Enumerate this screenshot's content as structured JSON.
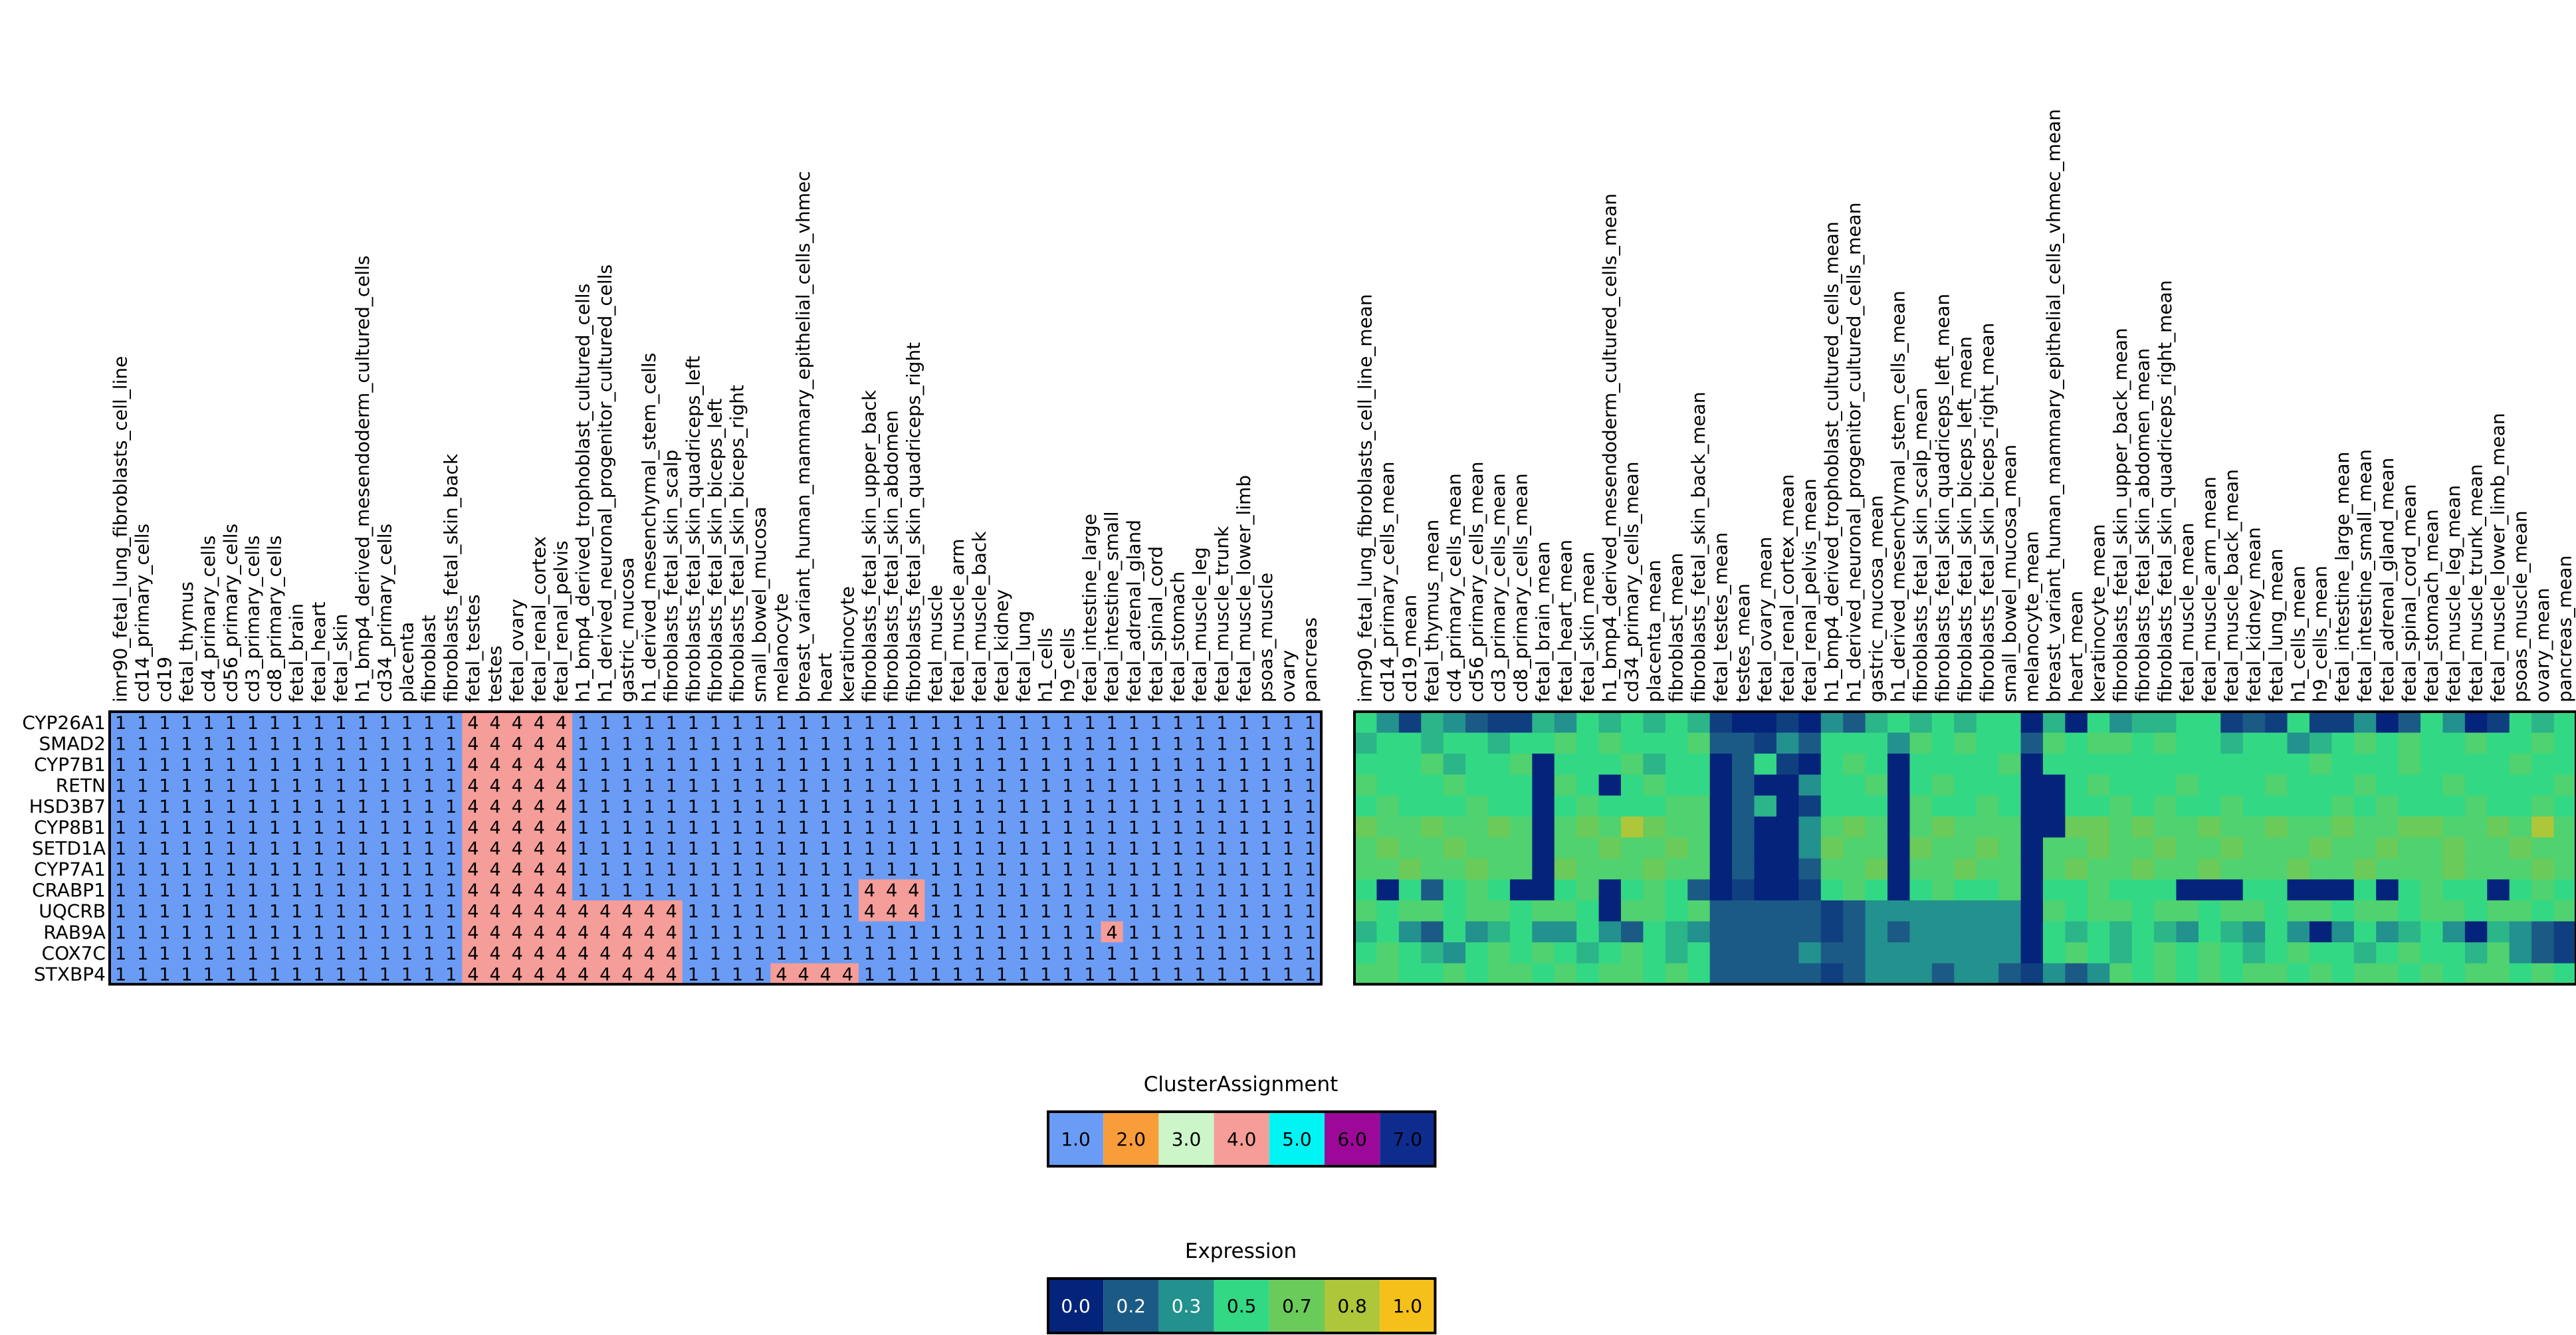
{
  "chart_data": [
    {
      "type": "heatmap",
      "rows": [
        "CYP26A1",
        "SMAD2",
        "CYP7B1",
        "RETN",
        "HSD3B7",
        "CYP8B1",
        "SETD1A",
        "CYP7A1",
        "CRABP1",
        "UQCRB",
        "RAB9A",
        "COX7C",
        "STXBP4"
      ],
      "columns": [
        "imr90_fetal_lung_fibroblasts_cell_line",
        "cd14_primary_cells",
        "cd19",
        "fetal_thymus",
        "cd4_primary_cells",
        "cd56_primary_cells",
        "cd3_primary_cells",
        "cd8_primary_cells",
        "fetal_brain",
        "fetal_heart",
        "fetal_skin",
        "h1_bmp4_derived_mesendoderm_cultured_cells",
        "cd34_primary_cells",
        "placenta",
        "fibroblast",
        "fibroblasts_fetal_skin_back",
        "fetal_testes",
        "testes",
        "fetal_ovary",
        "fetal_renal_cortex",
        "fetal_renal_pelvis",
        "h1_bmp4_derived_trophoblast_cultured_cells",
        "h1_derived_neuronal_progenitor_cultured_cells",
        "gastric_mucosa",
        "h1_derived_mesenchymal_stem_cells",
        "fibroblasts_fetal_skin_scalp",
        "fibroblasts_fetal_skin_quadriceps_left",
        "fibroblasts_fetal_skin_biceps_left",
        "fibroblasts_fetal_skin_biceps_right",
        "small_bowel_mucosa",
        "melanocyte",
        "breast_variant_human_mammary_epithelial_cells_vhmec",
        "heart",
        "keratinocyte",
        "fibroblasts_fetal_skin_upper_back",
        "fibroblasts_fetal_skin_abdomen",
        "fibroblasts_fetal_skin_quadriceps_right",
        "fetal_muscle",
        "fetal_muscle_arm",
        "fetal_muscle_back",
        "fetal_kidney",
        "fetal_lung",
        "h1_cells",
        "h9_cells",
        "fetal_intestine_large",
        "fetal_intestine_small",
        "fetal_adrenal_gland",
        "fetal_spinal_cord",
        "fetal_stomach",
        "fetal_muscle_leg",
        "fetal_muscle_trunk",
        "fetal_muscle_lower_limb",
        "psoas_muscle",
        "ovary",
        "pancreas"
      ],
      "values": [
        "1111111111111111444441111111111111111111111111111111111",
        "1111111111111111444441111111111111111111111111111111111",
        "1111111111111111444441111111111111111111111111111111111",
        "1111111111111111444441111111111111111111111111111111111",
        "1111111111111111444441111111111111111111111111111111111",
        "1111111111111111444441111111111111111111111111111111111",
        "1111111111111111444441111111111111111111111111111111111",
        "1111111111111111444441111111111111111111111111111111111",
        "1111111111111111444441111111111111444111111111111111111",
        "1111111111111111444444444411111111444111111111111111111",
        "1111111111111111444444444411111111111111111114111111111",
        "1111111111111111444444444411111111111111111111111111111",
        "1111111111111111444444444411114444111111111111111111111"
      ],
      "cluster_colors": {
        "1": "#6b9cf5",
        "4": "#f59d99"
      }
    },
    {
      "type": "heatmap",
      "rows": [
        "CYP26A1",
        "SMAD2",
        "CYP7B1",
        "RETN",
        "HSD3B7",
        "CYP8B1",
        "SETD1A",
        "CYP7A1",
        "CRABP1",
        "UQCRB",
        "RAB9A",
        "COX7C",
        "STXBP4"
      ],
      "columns": [
        "imr90_fetal_lung_fibroblasts_cell_line_mean",
        "cd14_primary_cells_mean",
        "cd19_mean",
        "fetal_thymus_mean",
        "cd4_primary_cells_mean",
        "cd56_primary_cells_mean",
        "cd3_primary_cells_mean",
        "cd8_primary_cells_mean",
        "fetal_brain_mean",
        "fetal_heart_mean",
        "fetal_skin_mean",
        "h1_bmp4_derived_mesendoderm_cultured_cells_mean",
        "cd34_primary_cells_mean",
        "placenta_mean",
        "fibroblast_mean",
        "fibroblasts_fetal_skin_back_mean",
        "fetal_testes_mean",
        "testes_mean",
        "fetal_ovary_mean",
        "fetal_renal_cortex_mean",
        "fetal_renal_pelvis_mean",
        "h1_bmp4_derived_trophoblast_cultured_cells_mean",
        "h1_derived_neuronal_progenitor_cultured_cells_mean",
        "gastric_mucosa_mean",
        "h1_derived_mesenchymal_stem_cells_mean",
        "fibroblasts_fetal_skin_scalp_mean",
        "fibroblasts_fetal_skin_quadriceps_left_mean",
        "fibroblasts_fetal_skin_biceps_left_mean",
        "fibroblasts_fetal_skin_biceps_right_mean",
        "small_bowel_mucosa_mean",
        "melanocyte_mean",
        "breast_variant_human_mammary_epithelial_cells_vhmec_mean",
        "heart_mean",
        "keratinocyte_mean",
        "fibroblasts_fetal_skin_upper_back_mean",
        "fibroblasts_fetal_skin_abdomen_mean",
        "fibroblasts_fetal_skin_quadriceps_right_mean",
        "fetal_muscle_mean",
        "fetal_muscle_arm_mean",
        "fetal_muscle_back_mean",
        "fetal_kidney_mean",
        "fetal_lung_mean",
        "h1_cells_mean",
        "h9_cells_mean",
        "fetal_intestine_large_mean",
        "fetal_intestine_small_mean",
        "fetal_adrenal_gland_mean",
        "fetal_spinal_cord_mean",
        "fetal_stomach_mean",
        "fetal_muscle_leg_mean",
        "fetal_muscle_trunk_mean",
        "fetal_muscle_lower_limb_mean",
        "psoas_muscle_mean",
        "ovary_mean",
        "pancreas_mean"
      ],
      "values": [
        [
          0.5,
          0.3,
          0.1,
          0.4,
          0.3,
          0.2,
          0.1,
          0.1,
          0.4,
          0.3,
          0.5,
          0.4,
          0.5,
          0.4,
          0.5,
          0.4,
          0.1,
          0.0,
          0.0,
          0.1,
          0.0,
          0.3,
          0.2,
          0.4,
          0.5,
          0.4,
          0.5,
          0.4,
          0.5,
          0.5,
          0.0,
          0.4,
          0.0,
          0.5,
          0.3,
          0.4,
          0.4,
          0.5,
          0.5,
          0.1,
          0.2,
          0.1,
          0.5,
          0.1,
          0.1,
          0.3,
          0.0,
          0.2,
          0.5,
          0.3,
          0.0,
          0.1,
          0.5,
          0.4,
          0.5
        ],
        [
          0.4,
          0.5,
          0.5,
          0.4,
          0.5,
          0.5,
          0.4,
          0.5,
          0.5,
          0.6,
          0.5,
          0.6,
          0.5,
          0.5,
          0.5,
          0.6,
          0.2,
          0.2,
          0.1,
          0.3,
          0.2,
          0.5,
          0.5,
          0.5,
          0.3,
          0.6,
          0.5,
          0.6,
          0.5,
          0.5,
          0.2,
          0.6,
          0.5,
          0.6,
          0.6,
          0.5,
          0.6,
          0.5,
          0.5,
          0.4,
          0.5,
          0.5,
          0.3,
          0.4,
          0.5,
          0.6,
          0.5,
          0.6,
          0.5,
          0.5,
          0.6,
          0.5,
          0.5,
          0.6,
          0.5
        ],
        [
          0.5,
          0.5,
          0.5,
          0.6,
          0.4,
          0.5,
          0.5,
          0.6,
          0.0,
          0.5,
          0.5,
          0.5,
          0.6,
          0.4,
          0.5,
          0.5,
          0.0,
          0.2,
          0.5,
          0.1,
          0.0,
          0.5,
          0.6,
          0.5,
          0.0,
          0.5,
          0.5,
          0.5,
          0.5,
          0.6,
          0.0,
          0.5,
          0.5,
          0.5,
          0.5,
          0.5,
          0.5,
          0.5,
          0.5,
          0.5,
          0.5,
          0.5,
          0.5,
          0.6,
          0.5,
          0.5,
          0.5,
          0.6,
          0.5,
          0.5,
          0.5,
          0.5,
          0.6,
          0.5,
          0.5
        ],
        [
          0.6,
          0.5,
          0.5,
          0.5,
          0.6,
          0.5,
          0.5,
          0.5,
          0.0,
          0.6,
          0.5,
          0.0,
          0.5,
          0.6,
          0.5,
          0.5,
          0.0,
          0.2,
          0.0,
          0.0,
          0.3,
          0.5,
          0.5,
          0.6,
          0.0,
          0.5,
          0.6,
          0.5,
          0.5,
          0.5,
          0.0,
          0.0,
          0.5,
          0.6,
          0.5,
          0.5,
          0.5,
          0.6,
          0.5,
          0.5,
          0.5,
          0.6,
          0.5,
          0.5,
          0.5,
          0.6,
          0.5,
          0.5,
          0.5,
          0.6,
          0.5,
          0.5,
          0.5,
          0.5,
          0.6
        ],
        [
          0.5,
          0.6,
          0.5,
          0.5,
          0.5,
          0.6,
          0.5,
          0.5,
          0.0,
          0.5,
          0.6,
          0.5,
          0.5,
          0.5,
          0.6,
          0.6,
          0.0,
          0.2,
          0.4,
          0.0,
          0.1,
          0.5,
          0.5,
          0.5,
          0.0,
          0.6,
          0.5,
          0.5,
          0.6,
          0.5,
          0.0,
          0.0,
          0.5,
          0.5,
          0.6,
          0.5,
          0.6,
          0.5,
          0.5,
          0.6,
          0.5,
          0.5,
          0.5,
          0.5,
          0.6,
          0.5,
          0.6,
          0.5,
          0.5,
          0.5,
          0.6,
          0.5,
          0.5,
          0.6,
          0.5
        ],
        [
          0.7,
          0.6,
          0.6,
          0.7,
          0.6,
          0.6,
          0.7,
          0.6,
          0.0,
          0.6,
          0.7,
          0.6,
          0.8,
          0.7,
          0.6,
          0.6,
          0.0,
          0.2,
          0.0,
          0.0,
          0.3,
          0.6,
          0.7,
          0.6,
          0.0,
          0.6,
          0.7,
          0.6,
          0.6,
          0.6,
          0.0,
          0.0,
          0.7,
          0.7,
          0.6,
          0.7,
          0.6,
          0.6,
          0.7,
          0.6,
          0.6,
          0.7,
          0.6,
          0.6,
          0.7,
          0.6,
          0.6,
          0.7,
          0.7,
          0.6,
          0.6,
          0.7,
          0.6,
          0.8,
          0.6
        ],
        [
          0.6,
          0.7,
          0.6,
          0.6,
          0.7,
          0.6,
          0.6,
          0.6,
          0.0,
          0.6,
          0.6,
          0.7,
          0.6,
          0.6,
          0.7,
          0.6,
          0.0,
          0.2,
          0.0,
          0.0,
          0.3,
          0.7,
          0.6,
          0.6,
          0.0,
          0.7,
          0.6,
          0.6,
          0.7,
          0.6,
          0.0,
          0.6,
          0.6,
          0.7,
          0.6,
          0.6,
          0.7,
          0.6,
          0.6,
          0.7,
          0.6,
          0.6,
          0.6,
          0.7,
          0.6,
          0.6,
          0.7,
          0.6,
          0.6,
          0.7,
          0.6,
          0.6,
          0.7,
          0.6,
          0.6
        ],
        [
          0.6,
          0.6,
          0.7,
          0.6,
          0.6,
          0.7,
          0.6,
          0.6,
          0.0,
          0.7,
          0.6,
          0.6,
          0.6,
          0.7,
          0.6,
          0.6,
          0.0,
          0.2,
          0.0,
          0.0,
          0.2,
          0.6,
          0.6,
          0.7,
          0.0,
          0.6,
          0.6,
          0.7,
          0.6,
          0.6,
          0.0,
          0.6,
          0.7,
          0.6,
          0.6,
          0.7,
          0.6,
          0.6,
          0.7,
          0.6,
          0.6,
          0.6,
          0.7,
          0.6,
          0.6,
          0.7,
          0.6,
          0.6,
          0.6,
          0.7,
          0.6,
          0.6,
          0.6,
          0.7,
          0.6
        ],
        [
          0.5,
          0.0,
          0.5,
          0.2,
          0.5,
          0.6,
          0.5,
          0.0,
          0.0,
          0.5,
          0.6,
          0.0,
          0.5,
          0.6,
          0.5,
          0.2,
          0.0,
          0.1,
          0.0,
          0.0,
          0.1,
          0.5,
          0.6,
          0.5,
          0.0,
          0.5,
          0.6,
          0.5,
          0.5,
          0.6,
          0.0,
          0.5,
          0.5,
          0.6,
          0.5,
          0.5,
          0.5,
          0.0,
          0.0,
          0.0,
          0.5,
          0.5,
          0.0,
          0.0,
          0.0,
          0.5,
          0.0,
          0.5,
          0.6,
          0.5,
          0.5,
          0.0,
          0.5,
          0.6,
          0.5
        ],
        [
          0.6,
          0.5,
          0.6,
          0.6,
          0.5,
          0.6,
          0.6,
          0.5,
          0.6,
          0.6,
          0.5,
          0.0,
          0.6,
          0.6,
          0.5,
          0.6,
          0.2,
          0.2,
          0.2,
          0.2,
          0.2,
          0.1,
          0.2,
          0.3,
          0.3,
          0.3,
          0.3,
          0.3,
          0.3,
          0.3,
          0.0,
          0.6,
          0.5,
          0.6,
          0.6,
          0.5,
          0.6,
          0.6,
          0.5,
          0.6,
          0.6,
          0.5,
          0.6,
          0.6,
          0.5,
          0.6,
          0.6,
          0.5,
          0.6,
          0.6,
          0.5,
          0.6,
          0.6,
          0.5,
          0.6
        ],
        [
          0.4,
          0.5,
          0.3,
          0.2,
          0.5,
          0.3,
          0.4,
          0.5,
          0.3,
          0.3,
          0.5,
          0.3,
          0.2,
          0.5,
          0.4,
          0.3,
          0.2,
          0.2,
          0.2,
          0.2,
          0.2,
          0.1,
          0.2,
          0.3,
          0.2,
          0.3,
          0.3,
          0.3,
          0.3,
          0.3,
          0.0,
          0.5,
          0.4,
          0.5,
          0.4,
          0.5,
          0.4,
          0.3,
          0.5,
          0.4,
          0.3,
          0.5,
          0.3,
          0.0,
          0.3,
          0.5,
          0.3,
          0.4,
          0.5,
          0.3,
          0.0,
          0.4,
          0.3,
          0.2,
          0.1
        ],
        [
          0.5,
          0.6,
          0.5,
          0.4,
          0.3,
          0.5,
          0.6,
          0.5,
          0.6,
          0.5,
          0.4,
          0.5,
          0.6,
          0.5,
          0.4,
          0.5,
          0.2,
          0.2,
          0.2,
          0.2,
          0.3,
          0.2,
          0.2,
          0.3,
          0.3,
          0.3,
          0.3,
          0.3,
          0.3,
          0.3,
          0.0,
          0.5,
          0.6,
          0.5,
          0.4,
          0.5,
          0.6,
          0.5,
          0.6,
          0.5,
          0.4,
          0.5,
          0.6,
          0.5,
          0.5,
          0.4,
          0.5,
          0.6,
          0.5,
          0.5,
          0.4,
          0.6,
          0.3,
          0.2,
          0.1
        ],
        [
          0.6,
          0.6,
          0.5,
          0.5,
          0.6,
          0.5,
          0.6,
          0.6,
          0.5,
          0.6,
          0.5,
          0.6,
          0.6,
          0.5,
          0.6,
          0.5,
          0.2,
          0.2,
          0.2,
          0.2,
          0.2,
          0.1,
          0.2,
          0.3,
          0.3,
          0.3,
          0.2,
          0.3,
          0.3,
          0.2,
          0.1,
          0.3,
          0.2,
          0.3,
          0.6,
          0.5,
          0.6,
          0.5,
          0.6,
          0.5,
          0.6,
          0.6,
          0.5,
          0.6,
          0.5,
          0.6,
          0.6,
          0.5,
          0.6,
          0.5,
          0.6,
          0.6,
          0.5,
          0.6,
          0.5
        ]
      ]
    }
  ],
  "legends": [
    {
      "title": "ClusterAssignment",
      "labels": [
        "1.0",
        "2.0",
        "3.0",
        "4.0",
        "5.0",
        "6.0",
        "7.0"
      ],
      "colors": [
        "#6b9cf5",
        "#f99d3a",
        "#ccf6c9",
        "#f69d97",
        "#00f4f3",
        "#9c0898",
        "#0d2c8e"
      ]
    },
    {
      "title": "Expression",
      "labels": [
        "0.0",
        "0.2",
        "0.3",
        "0.5",
        "0.7",
        "0.8",
        "1.0"
      ],
      "colors": [
        "#04237a",
        "#1c5a86",
        "#23918e",
        "#33d884",
        "#6bcb5a",
        "#adc63a",
        "#f5c01a"
      ],
      "label_colors": [
        "#ffffff",
        "#ffffff",
        "#ffffff",
        "#000000",
        "#000000",
        "#000000",
        "#000000"
      ]
    }
  ]
}
